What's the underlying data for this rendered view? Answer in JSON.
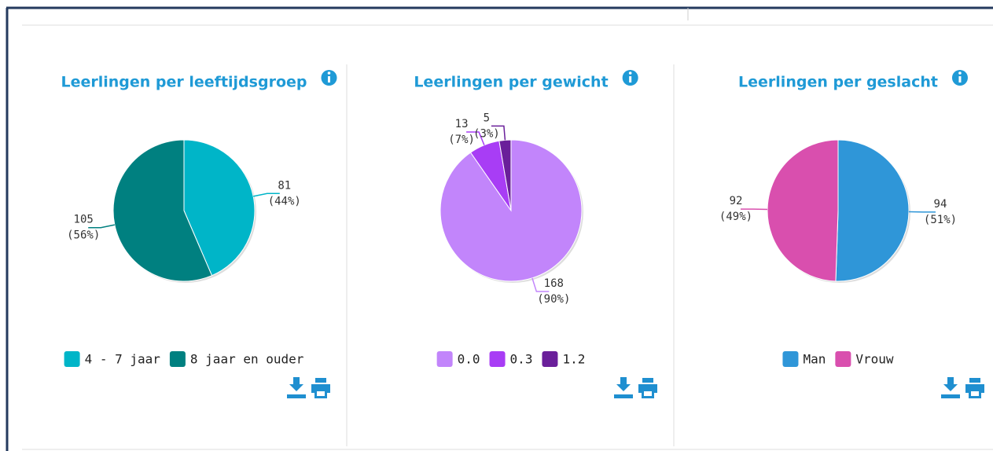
{
  "chart_data": [
    {
      "type": "pie",
      "title": "Leerlingen per leeftijdsgroep",
      "categories": [
        "4 - 7 jaar",
        "8 jaar en ouder"
      ],
      "values": [
        81,
        105
      ],
      "percent_labels": [
        "(44%)",
        "(56%)"
      ],
      "colors": [
        "#00b5c8",
        "#008080"
      ],
      "legend": true
    },
    {
      "type": "pie",
      "title": "Leerlingen per gewicht",
      "categories": [
        "0.0",
        "0.3",
        "1.2"
      ],
      "values": [
        168,
        13,
        5
      ],
      "percent_labels": [
        "(90%)",
        "(7%)",
        "(3%)"
      ],
      "colors": [
        "#c285fb",
        "#a83df5",
        "#6a1f9a"
      ],
      "legend": true
    },
    {
      "type": "pie",
      "title": "Leerlingen per geslacht",
      "categories": [
        "Man",
        "Vrouw"
      ],
      "values": [
        94,
        92
      ],
      "percent_labels": [
        "(51%)",
        "(49%)"
      ],
      "colors": [
        "#2f96d8",
        "#d94fae"
      ],
      "legend": true
    }
  ]
}
